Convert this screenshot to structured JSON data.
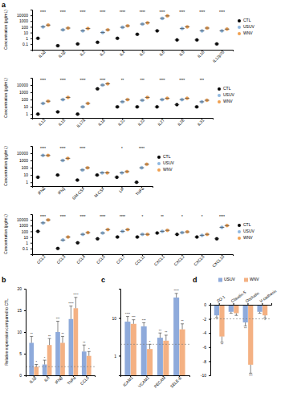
{
  "chart_data": [
    {
      "type": "dot",
      "panel_label": "a",
      "y_label": "Concentration (pg/mL)",
      "log": "y",
      "legend": "right",
      "categories": [
        "IL1α",
        "IL1β",
        "IL2",
        "IL3",
        "IL4",
        "IL5",
        "IL6",
        "IL9",
        "IL10",
        "IL12p70"
      ],
      "series": [
        {
          "name": "CTL",
          "color": "#000000",
          "values": [
            1,
            0.05,
            0.1,
            0.2,
            1,
            5,
            20,
            0.5,
            0.5,
            0.1
          ]
        },
        {
          "name": "USUV",
          "color": "#8fb8e0",
          "values": [
            100,
            30,
            20,
            10,
            80,
            300,
            3000,
            50,
            20,
            20
          ]
        },
        {
          "name": "WNV",
          "color": "#f0a050",
          "values": [
            200,
            60,
            50,
            30,
            150,
            500,
            8000,
            100,
            60,
            40
          ]
        }
      ],
      "significance": [
        "****",
        "****",
        "****",
        "****",
        "****",
        "****",
        "****",
        "****",
        "****",
        "****"
      ],
      "ylim": [
        0.01,
        100000
      ],
      "yticks": [
        0.1,
        1,
        10,
        100,
        1000,
        10000
      ]
    },
    {
      "type": "dot",
      "y_label": "Concentration (pg/mL)",
      "log": "y",
      "legend": "right",
      "categories": [
        "IL13",
        "IL15",
        "IL17a",
        "IL18",
        "IL22",
        "IL23",
        "IL27",
        "IL28",
        "IL31"
      ],
      "series": [
        {
          "name": "CTL",
          "color": "#000000",
          "values": [
            1,
            2,
            1,
            3000,
            10,
            10,
            10,
            20,
            10
          ]
        },
        {
          "name": "USUV",
          "color": "#8fb8e0",
          "values": [
            30,
            100,
            10,
            10000,
            50,
            80,
            100,
            100,
            50
          ]
        },
        {
          "name": "WNV",
          "color": "#f0a050",
          "values": [
            60,
            200,
            30,
            15000,
            100,
            200,
            150,
            150,
            80
          ]
        }
      ],
      "significance": [
        "****",
        "****",
        "****",
        "****",
        "**",
        "***",
        "****",
        "****",
        "***"
      ],
      "ylim": [
        0.3,
        100000
      ],
      "yticks": [
        1,
        10,
        100,
        1000,
        10000
      ]
    },
    {
      "type": "dot",
      "y_label": "Concentration (pg/mL)",
      "log": "y",
      "legend": "right",
      "categories": [
        "IFNα",
        "IFNγ",
        "GM-CSF",
        "M-CSF",
        "LIF",
        "TNFα"
      ],
      "series": [
        {
          "name": "CTL",
          "color": "#000000",
          "values": [
            5,
            10,
            2,
            10,
            5,
            1
          ]
        },
        {
          "name": "USUV",
          "color": "#8fb8e0",
          "values": [
            5000,
            1000,
            50,
            20,
            20,
            100
          ]
        },
        {
          "name": "WNV",
          "color": "#f0a050",
          "values": [
            5000,
            2000,
            100,
            20,
            30,
            300
          ]
        }
      ],
      "significance": [
        "****",
        "****",
        "****",
        null,
        "*",
        "****"
      ],
      "ylim": [
        0.3,
        100000
      ],
      "yticks": [
        1,
        10,
        100,
        1000,
        10000
      ]
    },
    {
      "type": "dot",
      "y_label": "Concentration (pg/mL)",
      "log": "y",
      "legend": "right",
      "categories": [
        "CCL2",
        "CCL3",
        "CCL4",
        "CCL5",
        "CCL7",
        "CCL11",
        "CXCL1",
        "CXCL2",
        "CXCL5",
        "CXCL10"
      ],
      "series": [
        {
          "name": "CTL",
          "color": "#000000",
          "values": [
            100,
            0.1,
            1,
            5,
            10,
            10,
            50,
            30,
            10,
            5
          ]
        },
        {
          "name": "USUV",
          "color": "#8fb8e0",
          "values": [
            3000,
            3,
            30,
            50,
            100,
            30,
            100,
            60,
            20,
            500
          ]
        },
        {
          "name": "WNV",
          "color": "#f0a050",
          "values": [
            10000,
            10,
            60,
            200,
            200,
            30,
            150,
            80,
            30,
            1000
          ]
        }
      ],
      "significance": [
        "****",
        "****",
        "****",
        "****",
        "****",
        "*",
        "**",
        "*",
        "*",
        "****"
      ],
      "ylim": [
        0.01,
        100000
      ],
      "yticks": [
        0.1,
        1,
        10,
        100,
        1000,
        10000
      ]
    },
    {
      "type": "bar",
      "panel_label": "b",
      "y_label": "Relative expression compared to CTL",
      "categories": [
        "IL1β",
        "IL6",
        "IFNβ",
        "TNFα",
        "CCL5"
      ],
      "series": [
        {
          "color": "#8eaadb",
          "values": [
            7.5,
            2.5,
            10,
            13,
            5.5
          ],
          "errors": [
            1.5,
            1,
            2.5,
            3,
            1.5
          ],
          "significance": [
            "**",
            "*",
            "***",
            "****",
            "**"
          ]
        },
        {
          "color": "#f4b183",
          "values": [
            2,
            7,
            7.5,
            15.5,
            4.5
          ],
          "errors": [
            0.5,
            1.5,
            1.5,
            2.5,
            1
          ],
          "significance": [
            "*",
            "**",
            "**",
            "****",
            "*"
          ]
        }
      ],
      "threshold": 2,
      "ylim": [
        0,
        20
      ],
      "yticks": [
        0,
        5,
        10,
        15,
        20
      ]
    },
    {
      "type": "bar",
      "panel_label": "c",
      "log": "y",
      "categories": [
        "ICAM1",
        "VCAM1",
        "PECAM",
        "SELE-E"
      ],
      "series": [
        {
          "color": "#8eaadb",
          "values": [
            8,
            6,
            3,
            35
          ],
          "errors": [
            3,
            1.5,
            1,
            10
          ],
          "significance": [
            "****",
            "***",
            "**",
            "****"
          ]
        },
        {
          "color": "#f4b183",
          "values": [
            7,
            1.5,
            2.5,
            5
          ],
          "errors": [
            2,
            0.5,
            1,
            2
          ],
          "significance": [
            "***",
            "*",
            "**",
            "**"
          ]
        }
      ],
      "threshold": 2,
      "ylim": [
        0.3,
        60
      ],
      "yticks": [
        1,
        10
      ]
    },
    {
      "type": "bar",
      "panel_label": "d",
      "legend": "top",
      "categories": [
        "ZO-1",
        "Claudin-5",
        "Occludin",
        "V-cadherin"
      ],
      "series": [
        {
          "name": "USUV",
          "color": "#8eaadb",
          "values": [
            -1.5,
            -1,
            -2.5,
            -1
          ],
          "errors": [
            0.3,
            0.2,
            0.5,
            0.2
          ],
          "significance": [
            "*",
            null,
            "**",
            null
          ]
        },
        {
          "name": "WNV",
          "color": "#f4b183",
          "values": [
            -4.5,
            -1.2,
            -8.5,
            -1.5
          ],
          "errors": [
            0.8,
            0.3,
            1.2,
            0.4
          ],
          "significance": [
            "**",
            null,
            "***",
            "*"
          ]
        }
      ],
      "threshold": -2,
      "ylim": [
        -10,
        0
      ],
      "yticks": [
        -10,
        -8,
        -6,
        -4,
        -2,
        0
      ]
    }
  ]
}
